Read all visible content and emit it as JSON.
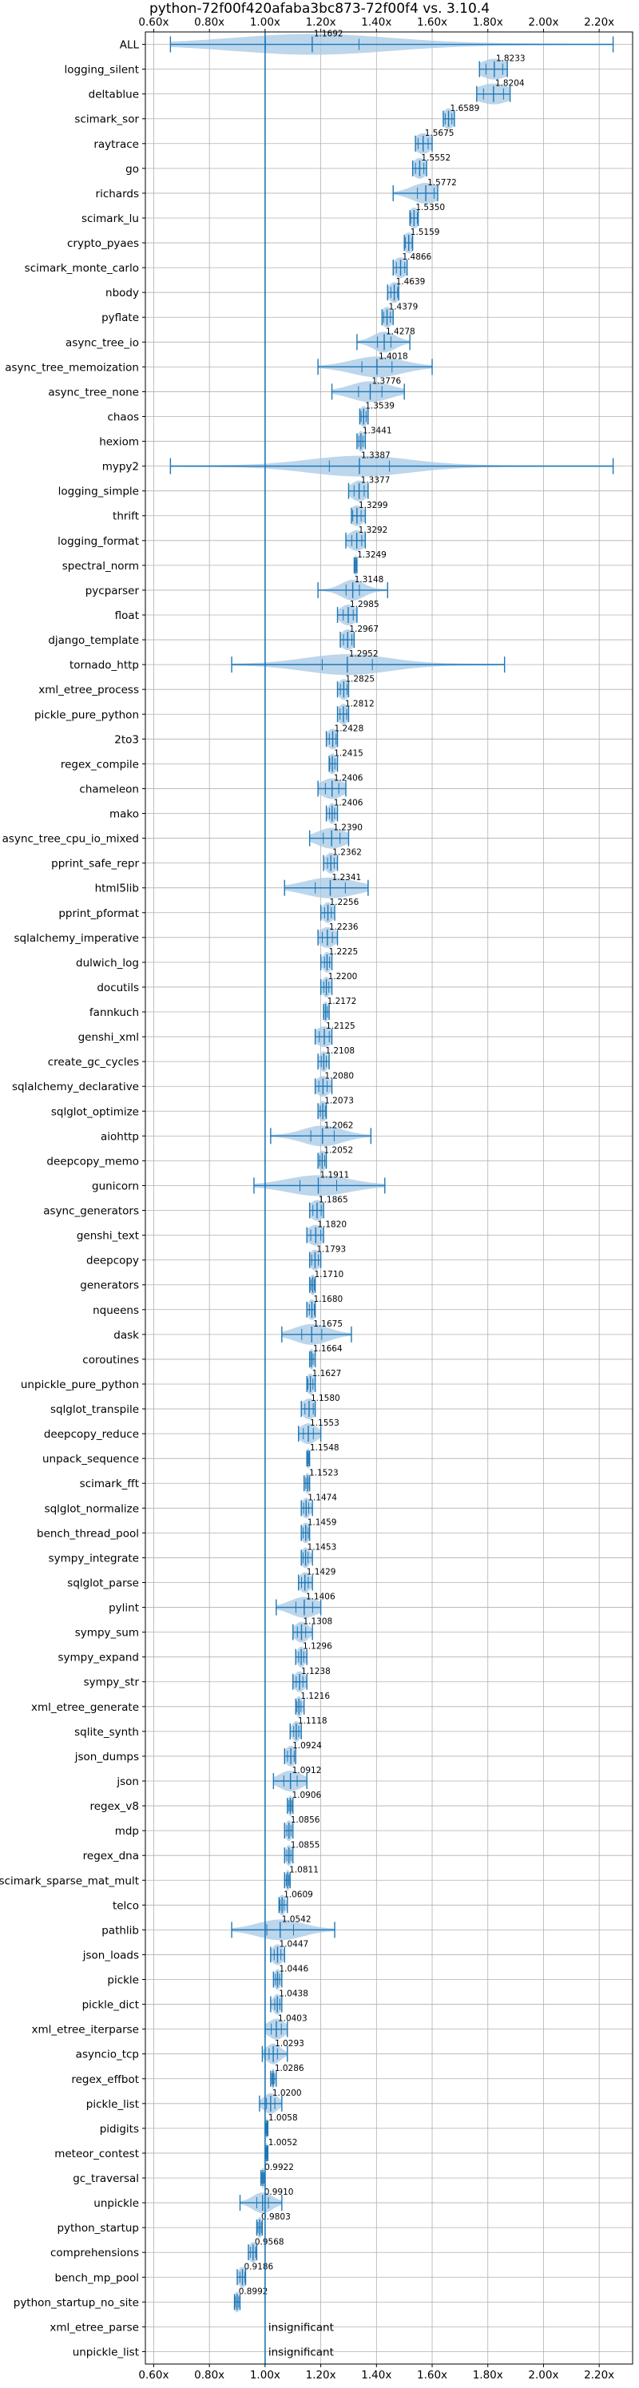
{
  "chart_data": {
    "type": "violin",
    "title": "python-72f00f420afaba3bc873-72f00f4 vs. 3.10.4",
    "xlabel": "",
    "ylabel": "",
    "xlim": [
      0.57,
      2.32
    ],
    "xticks": [
      0.6,
      0.8,
      1.0,
      1.2,
      1.4,
      1.6,
      1.8,
      2.0,
      2.2
    ],
    "xtick_labels": [
      "0.60x",
      "0.80x",
      "1.00x",
      "1.20x",
      "1.40x",
      "1.60x",
      "1.80x",
      "2.00x",
      "2.20x"
    ],
    "grid": true,
    "reference_line": 1.0,
    "colors": {
      "accent": "#1f77b4",
      "violin": "#a6c8e6",
      "grid": "#b0b0b0"
    },
    "benchmarks": [
      {
        "name": "ALL",
        "median": 1.1692,
        "min": 0.66,
        "max": 2.25,
        "spread": 0.28,
        "label": "1.1692"
      },
      {
        "name": "logging_silent",
        "median": 1.8233,
        "min": 1.77,
        "max": 1.87,
        "spread": 0.05,
        "label": "1.8233"
      },
      {
        "name": "deltablue",
        "median": 1.8204,
        "min": 1.76,
        "max": 1.88,
        "spread": 0.06,
        "label": "1.8204"
      },
      {
        "name": "scimark_sor",
        "median": 1.6589,
        "min": 1.64,
        "max": 1.68,
        "spread": 0.02,
        "label": "1.6589"
      },
      {
        "name": "raytrace",
        "median": 1.5675,
        "min": 1.54,
        "max": 1.6,
        "spread": 0.03,
        "label": "1.5675"
      },
      {
        "name": "go",
        "median": 1.5552,
        "min": 1.53,
        "max": 1.58,
        "spread": 0.025,
        "label": "1.5552"
      },
      {
        "name": "richards",
        "median": 1.5772,
        "min": 1.46,
        "max": 1.62,
        "spread": 0.05,
        "label": "1.5772"
      },
      {
        "name": "scimark_lu",
        "median": 1.535,
        "min": 1.52,
        "max": 1.55,
        "spread": 0.02,
        "label": "1.5350"
      },
      {
        "name": "crypto_pyaes",
        "median": 1.5159,
        "min": 1.5,
        "max": 1.53,
        "spread": 0.02,
        "label": "1.5159"
      },
      {
        "name": "scimark_monte_carlo",
        "median": 1.4866,
        "min": 1.46,
        "max": 1.51,
        "spread": 0.025,
        "label": "1.4866"
      },
      {
        "name": "nbody",
        "median": 1.4639,
        "min": 1.44,
        "max": 1.48,
        "spread": 0.02,
        "label": "1.4639"
      },
      {
        "name": "pyflate",
        "median": 1.4379,
        "min": 1.42,
        "max": 1.46,
        "spread": 0.02,
        "label": "1.4379"
      },
      {
        "name": "async_tree_io",
        "median": 1.4278,
        "min": 1.33,
        "max": 1.52,
        "spread": 0.04,
        "label": "1.4278"
      },
      {
        "name": "async_tree_memoization",
        "median": 1.4018,
        "min": 1.19,
        "max": 1.6,
        "spread": 0.09,
        "label": "1.4018"
      },
      {
        "name": "async_tree_none",
        "median": 1.3776,
        "min": 1.24,
        "max": 1.5,
        "spread": 0.07,
        "label": "1.3776"
      },
      {
        "name": "chaos",
        "median": 1.3539,
        "min": 1.34,
        "max": 1.37,
        "spread": 0.015,
        "label": "1.3539"
      },
      {
        "name": "hexiom",
        "median": 1.3441,
        "min": 1.33,
        "max": 1.36,
        "spread": 0.012,
        "label": "1.3441"
      },
      {
        "name": "mypy2",
        "median": 1.3387,
        "min": 0.66,
        "max": 2.25,
        "spread": 0.18,
        "label": "1.3387"
      },
      {
        "name": "logging_simple",
        "median": 1.3377,
        "min": 1.3,
        "max": 1.37,
        "spread": 0.03,
        "label": "1.3377"
      },
      {
        "name": "thrift",
        "median": 1.3299,
        "min": 1.31,
        "max": 1.36,
        "spread": 0.025,
        "label": "1.3299"
      },
      {
        "name": "logging_format",
        "median": 1.3292,
        "min": 1.29,
        "max": 1.36,
        "spread": 0.03,
        "label": "1.3292"
      },
      {
        "name": "spectral_norm",
        "median": 1.3249,
        "min": 1.32,
        "max": 1.33,
        "spread": 0.006,
        "label": "1.3249"
      },
      {
        "name": "pycparser",
        "median": 1.3148,
        "min": 1.19,
        "max": 1.44,
        "spread": 0.04,
        "label": "1.3148"
      },
      {
        "name": "float",
        "median": 1.2985,
        "min": 1.26,
        "max": 1.33,
        "spread": 0.03,
        "label": "1.2985"
      },
      {
        "name": "django_template",
        "median": 1.2967,
        "min": 1.27,
        "max": 1.32,
        "spread": 0.025,
        "label": "1.2967"
      },
      {
        "name": "tornado_http",
        "median": 1.2952,
        "min": 0.88,
        "max": 1.86,
        "spread": 0.15,
        "label": "1.2952"
      },
      {
        "name": "xml_etree_process",
        "median": 1.2825,
        "min": 1.26,
        "max": 1.3,
        "spread": 0.02,
        "label": "1.2825"
      },
      {
        "name": "pickle_pure_python",
        "median": 1.2812,
        "min": 1.26,
        "max": 1.3,
        "spread": 0.02,
        "label": "1.2812"
      },
      {
        "name": "2to3",
        "median": 1.2428,
        "min": 1.22,
        "max": 1.26,
        "spread": 0.02,
        "label": "1.2428"
      },
      {
        "name": "regex_compile",
        "median": 1.2415,
        "min": 1.23,
        "max": 1.26,
        "spread": 0.015,
        "label": "1.2415"
      },
      {
        "name": "chameleon",
        "median": 1.2406,
        "min": 1.19,
        "max": 1.29,
        "spread": 0.04,
        "label": "1.2406"
      },
      {
        "name": "mako",
        "median": 1.2406,
        "min": 1.22,
        "max": 1.26,
        "spread": 0.015,
        "label": "1.2406"
      },
      {
        "name": "async_tree_cpu_io_mixed",
        "median": 1.239,
        "min": 1.16,
        "max": 1.3,
        "spread": 0.05,
        "label": "1.2390"
      },
      {
        "name": "pprint_safe_repr",
        "median": 1.2362,
        "min": 1.21,
        "max": 1.26,
        "spread": 0.02,
        "label": "1.2362"
      },
      {
        "name": "html5lib",
        "median": 1.2341,
        "min": 1.07,
        "max": 1.37,
        "spread": 0.09,
        "label": "1.2341"
      },
      {
        "name": "pprint_pformat",
        "median": 1.2256,
        "min": 1.2,
        "max": 1.25,
        "spread": 0.02,
        "label": "1.2256"
      },
      {
        "name": "sqlalchemy_imperative",
        "median": 1.2236,
        "min": 1.19,
        "max": 1.26,
        "spread": 0.03,
        "label": "1.2236"
      },
      {
        "name": "dulwich_log",
        "median": 1.2225,
        "min": 1.2,
        "max": 1.24,
        "spread": 0.015,
        "label": "1.2225"
      },
      {
        "name": "docutils",
        "median": 1.22,
        "min": 1.2,
        "max": 1.24,
        "spread": 0.015,
        "label": "1.2200"
      },
      {
        "name": "fannkuch",
        "median": 1.2172,
        "min": 1.21,
        "max": 1.23,
        "spread": 0.01,
        "label": "1.2172"
      },
      {
        "name": "genshi_xml",
        "median": 1.2125,
        "min": 1.18,
        "max": 1.24,
        "spread": 0.03,
        "label": "1.2125"
      },
      {
        "name": "create_gc_cycles",
        "median": 1.2108,
        "min": 1.19,
        "max": 1.23,
        "spread": 0.015,
        "label": "1.2108"
      },
      {
        "name": "sqlalchemy_declarative",
        "median": 1.208,
        "min": 1.18,
        "max": 1.24,
        "spread": 0.025,
        "label": "1.2080"
      },
      {
        "name": "sqlglot_optimize",
        "median": 1.2073,
        "min": 1.19,
        "max": 1.22,
        "spread": 0.015,
        "label": "1.2073"
      },
      {
        "name": "aiohttp",
        "median": 1.2062,
        "min": 1.02,
        "max": 1.38,
        "spread": 0.07,
        "label": "1.2062"
      },
      {
        "name": "deepcopy_memo",
        "median": 1.2052,
        "min": 1.19,
        "max": 1.22,
        "spread": 0.015,
        "label": "1.2052"
      },
      {
        "name": "gunicorn",
        "median": 1.1911,
        "min": 0.96,
        "max": 1.43,
        "spread": 0.11,
        "label": "1.1911"
      },
      {
        "name": "async_generators",
        "median": 1.1865,
        "min": 1.16,
        "max": 1.21,
        "spread": 0.025,
        "label": "1.1865"
      },
      {
        "name": "genshi_text",
        "median": 1.182,
        "min": 1.15,
        "max": 1.21,
        "spread": 0.03,
        "label": "1.1820"
      },
      {
        "name": "deepcopy",
        "median": 1.1793,
        "min": 1.16,
        "max": 1.2,
        "spread": 0.02,
        "label": "1.1793"
      },
      {
        "name": "generators",
        "median": 1.171,
        "min": 1.16,
        "max": 1.18,
        "spread": 0.01,
        "label": "1.1710"
      },
      {
        "name": "nqueens",
        "median": 1.168,
        "min": 1.15,
        "max": 1.18,
        "spread": 0.015,
        "label": "1.1680"
      },
      {
        "name": "dask",
        "median": 1.1675,
        "min": 1.06,
        "max": 1.31,
        "spread": 0.06,
        "label": "1.1675"
      },
      {
        "name": "coroutines",
        "median": 1.1664,
        "min": 1.16,
        "max": 1.18,
        "spread": 0.01,
        "label": "1.1664"
      },
      {
        "name": "unpickle_pure_python",
        "median": 1.1627,
        "min": 1.15,
        "max": 1.18,
        "spread": 0.015,
        "label": "1.1627"
      },
      {
        "name": "sqlglot_transpile",
        "median": 1.158,
        "min": 1.13,
        "max": 1.18,
        "spread": 0.025,
        "label": "1.1580"
      },
      {
        "name": "deepcopy_reduce",
        "median": 1.1553,
        "min": 1.12,
        "max": 1.2,
        "spread": 0.03,
        "label": "1.1553"
      },
      {
        "name": "unpack_sequence",
        "median": 1.1548,
        "min": 1.15,
        "max": 1.16,
        "spread": 0.006,
        "label": "1.1548"
      },
      {
        "name": "scimark_fft",
        "median": 1.1523,
        "min": 1.14,
        "max": 1.16,
        "spread": 0.01,
        "label": "1.1523"
      },
      {
        "name": "sqlglot_normalize",
        "median": 1.1474,
        "min": 1.13,
        "max": 1.17,
        "spread": 0.015,
        "label": "1.1474"
      },
      {
        "name": "bench_thread_pool",
        "median": 1.1459,
        "min": 1.13,
        "max": 1.16,
        "spread": 0.015,
        "label": "1.1459"
      },
      {
        "name": "sympy_integrate",
        "median": 1.1453,
        "min": 1.13,
        "max": 1.17,
        "spread": 0.015,
        "label": "1.1453"
      },
      {
        "name": "sqlglot_parse",
        "median": 1.1429,
        "min": 1.12,
        "max": 1.17,
        "spread": 0.02,
        "label": "1.1429"
      },
      {
        "name": "pylint",
        "median": 1.1406,
        "min": 1.04,
        "max": 1.2,
        "spread": 0.05,
        "label": "1.1406"
      },
      {
        "name": "sympy_sum",
        "median": 1.1308,
        "min": 1.1,
        "max": 1.17,
        "spread": 0.025,
        "label": "1.1308"
      },
      {
        "name": "sympy_expand",
        "median": 1.1296,
        "min": 1.11,
        "max": 1.15,
        "spread": 0.015,
        "label": "1.1296"
      },
      {
        "name": "sympy_str",
        "median": 1.1238,
        "min": 1.1,
        "max": 1.15,
        "spread": 0.02,
        "label": "1.1238"
      },
      {
        "name": "xml_etree_generate",
        "median": 1.1216,
        "min": 1.11,
        "max": 1.14,
        "spread": 0.012,
        "label": "1.1216"
      },
      {
        "name": "sqlite_synth",
        "median": 1.1118,
        "min": 1.09,
        "max": 1.13,
        "spread": 0.015,
        "label": "1.1118"
      },
      {
        "name": "json_dumps",
        "median": 1.0924,
        "min": 1.07,
        "max": 1.11,
        "spread": 0.02,
        "label": "1.0924"
      },
      {
        "name": "json",
        "median": 1.0912,
        "min": 1.03,
        "max": 1.15,
        "spread": 0.04,
        "label": "1.0912"
      },
      {
        "name": "regex_v8",
        "median": 1.0906,
        "min": 1.08,
        "max": 1.1,
        "spread": 0.008,
        "label": "1.0906"
      },
      {
        "name": "mdp",
        "median": 1.0856,
        "min": 1.07,
        "max": 1.1,
        "spread": 0.012,
        "label": "1.0856"
      },
      {
        "name": "regex_dna",
        "median": 1.0855,
        "min": 1.07,
        "max": 1.1,
        "spread": 0.012,
        "label": "1.0855"
      },
      {
        "name": "scimark_sparse_mat_mult",
        "median": 1.0811,
        "min": 1.07,
        "max": 1.09,
        "spread": 0.008,
        "label": "1.0811"
      },
      {
        "name": "telco",
        "median": 1.0609,
        "min": 1.05,
        "max": 1.08,
        "spread": 0.012,
        "label": "1.0609"
      },
      {
        "name": "pathlib",
        "median": 1.0542,
        "min": 0.88,
        "max": 1.25,
        "spread": 0.08,
        "label": "1.0542"
      },
      {
        "name": "json_loads",
        "median": 1.0447,
        "min": 1.02,
        "max": 1.07,
        "spread": 0.02,
        "label": "1.0447"
      },
      {
        "name": "pickle",
        "median": 1.0446,
        "min": 1.03,
        "max": 1.06,
        "spread": 0.012,
        "label": "1.0446"
      },
      {
        "name": "pickle_dict",
        "median": 1.0438,
        "min": 1.02,
        "max": 1.06,
        "spread": 0.015,
        "label": "1.0438"
      },
      {
        "name": "xml_etree_iterparse",
        "median": 1.0403,
        "min": 1.0,
        "max": 1.08,
        "spread": 0.03,
        "label": "1.0403"
      },
      {
        "name": "asyncio_tcp",
        "median": 1.0293,
        "min": 0.99,
        "max": 1.08,
        "spread": 0.025,
        "label": "1.0293"
      },
      {
        "name": "regex_effbot",
        "median": 1.0286,
        "min": 1.02,
        "max": 1.04,
        "spread": 0.006,
        "label": "1.0286"
      },
      {
        "name": "pickle_list",
        "median": 1.02,
        "min": 0.98,
        "max": 1.06,
        "spread": 0.025,
        "label": "1.0200"
      },
      {
        "name": "pidigits",
        "median": 1.0058,
        "min": 1.0,
        "max": 1.01,
        "spread": 0.004,
        "label": "1.0058"
      },
      {
        "name": "meteor_contest",
        "median": 1.0052,
        "min": 1.0,
        "max": 1.01,
        "spread": 0.004,
        "label": "1.0052"
      },
      {
        "name": "gc_traversal",
        "median": 0.9922,
        "min": 0.985,
        "max": 1.0,
        "spread": 0.006,
        "label": "0.9922"
      },
      {
        "name": "unpickle",
        "median": 0.991,
        "min": 0.91,
        "max": 1.06,
        "spread": 0.035,
        "label": "0.9910"
      },
      {
        "name": "python_startup",
        "median": 0.9803,
        "min": 0.97,
        "max": 0.99,
        "spread": 0.01,
        "label": "0.9803"
      },
      {
        "name": "comprehensions",
        "median": 0.9568,
        "min": 0.94,
        "max": 0.97,
        "spread": 0.015,
        "label": "0.9568"
      },
      {
        "name": "bench_mp_pool",
        "median": 0.9186,
        "min": 0.9,
        "max": 0.93,
        "spread": 0.015,
        "label": "0.9186"
      },
      {
        "name": "python_startup_no_site",
        "median": 0.8992,
        "min": 0.89,
        "max": 0.91,
        "spread": 0.01,
        "label": "0.8992"
      },
      {
        "name": "xml_etree_parse",
        "median": null,
        "min": null,
        "max": null,
        "spread": null,
        "label": "insignificant"
      },
      {
        "name": "unpickle_list",
        "median": null,
        "min": null,
        "max": null,
        "spread": null,
        "label": "insignificant"
      }
    ]
  }
}
